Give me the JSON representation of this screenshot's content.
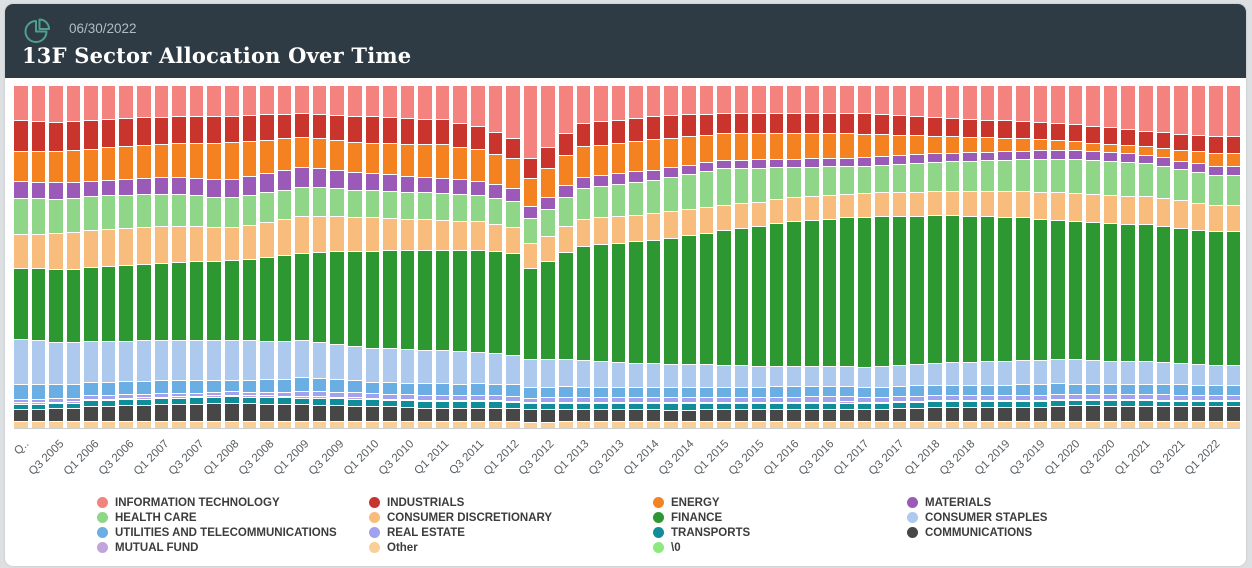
{
  "header": {
    "as_of_date": "06/30/2022",
    "title": "13F Sector Allocation Over Time",
    "icon_color": "#4fa08c",
    "background": "#2e3b44"
  },
  "chart_data": {
    "type": "bar",
    "subtype": "stacked-100-percent",
    "title": "13F Sector Allocation Over Time",
    "as_of_date": "06/30/2022",
    "xlabel": "",
    "ylabel": "",
    "ylim": [
      0,
      100
    ],
    "value_format": "percent",
    "grid": false,
    "legend_position": "bottom",
    "bar_count": 70,
    "x_tick_labels": [
      "Q..",
      "Q3 2005",
      "Q1 2006",
      "Q3 2006",
      "Q1 2007",
      "Q3 2007",
      "Q1 2008",
      "Q3 2008",
      "Q1 2009",
      "Q3 2009",
      "Q1 2010",
      "Q3 2010",
      "Q1 2011",
      "Q3 2011",
      "Q1 2012",
      "Q3 2012",
      "Q1 2013",
      "Q3 2013",
      "Q1 2014",
      "Q3 2014",
      "Q1 2015",
      "Q3 2015",
      "Q1 2016",
      "Q3 2016",
      "Q1 2017",
      "Q3 2017",
      "Q1 2018",
      "Q3 2018",
      "Q1 2019",
      "Q3 2019",
      "Q1 2020",
      "Q3 2020",
      "Q1 2021",
      "Q3 2021",
      "Q1 2022"
    ],
    "series": [
      {
        "name": "INFORMATION TECHNOLOGY",
        "color": "#f4827e",
        "values": [
          10,
          10.2,
          10.5,
          10.3,
          10,
          9.8,
          9.5,
          9.3,
          9.2,
          9,
          9,
          9,
          9,
          8.8,
          8.5,
          8.2,
          8,
          8.2,
          8.5,
          8.8,
          9,
          9.2,
          9.5,
          9.8,
          10,
          11,
          12,
          14,
          16,
          23,
          19,
          14,
          11,
          10.5,
          10,
          9.5,
          9,
          8.8,
          8.5,
          8.3,
          8,
          8,
          8,
          8,
          8,
          8,
          8,
          8,
          8,
          8.2,
          8.5,
          8.8,
          9,
          9.2,
          9.5,
          9.8,
          10,
          10.2,
          10.5,
          10.8,
          11,
          11.5,
          12,
          12.5,
          13,
          13.5,
          14,
          14.5,
          15,
          15
        ]
      },
      {
        "name": "INDUSTRIALS",
        "color": "#c9342c",
        "values": [
          9,
          8.9,
          8.8,
          8.6,
          8.5,
          8.4,
          8.3,
          8.1,
          8,
          8,
          8,
          8,
          8,
          7.8,
          7.5,
          7.2,
          7,
          7.2,
          7.5,
          7.8,
          8,
          7.9,
          7.8,
          7.6,
          7.5,
          7.2,
          6.8,
          6.4,
          6,
          6.2,
          6.5,
          6.8,
          7,
          7,
          7,
          7,
          7,
          6.8,
          6.5,
          6.2,
          6,
          6,
          6,
          6,
          6,
          6,
          6,
          6,
          6,
          5.9,
          5.8,
          5.6,
          5.5,
          5.4,
          5.3,
          5.1,
          5,
          5,
          5,
          5,
          5,
          4.9,
          4.8,
          4.6,
          4.5,
          4.6,
          4.8,
          4.9,
          5,
          5
        ]
      },
      {
        "name": "ENERGY",
        "color": "#f58220",
        "values": [
          9,
          9.1,
          9.2,
          9.4,
          9.5,
          9.6,
          9.8,
          9.9,
          10,
          10.2,
          10.5,
          10.8,
          11,
          10.5,
          10,
          9.5,
          9,
          9,
          9,
          9,
          9,
          9.2,
          9.5,
          9.8,
          10,
          9.8,
          9.5,
          9.2,
          9,
          9,
          9,
          9,
          9,
          9,
          9,
          9,
          9,
          8.8,
          8.5,
          8.2,
          8,
          7.9,
          7.8,
          7.6,
          7.5,
          7.4,
          7.2,
          7.1,
          7,
          6.5,
          6,
          5.5,
          5,
          4.8,
          4.5,
          4.2,
          4,
          3.6,
          3.2,
          2.8,
          2.5,
          2.5,
          2.5,
          2.5,
          2.5,
          2.8,
          3.2,
          3.6,
          4,
          4
        ]
      },
      {
        "name": "MATERIALS",
        "color": "#9c5ab8",
        "values": [
          5,
          4.9,
          4.8,
          4.6,
          4.5,
          4.6,
          4.8,
          4.9,
          5,
          5.1,
          5.2,
          5.4,
          5.5,
          5.6,
          5.8,
          5.9,
          6,
          5.8,
          5.5,
          5.2,
          5,
          4.9,
          4.8,
          4.6,
          4.5,
          4.4,
          4.2,
          4.1,
          4,
          3.9,
          3.8,
          3.6,
          3.5,
          3.4,
          3.2,
          3.1,
          3,
          2.9,
          2.8,
          2.6,
          2.5,
          2.5,
          2.5,
          2.5,
          2.5,
          2.5,
          2.5,
          2.5,
          2.5,
          2.5,
          2.5,
          2.5,
          2.5,
          2.5,
          2.5,
          2.5,
          2.5,
          2.5,
          2.5,
          2.5,
          2.5,
          2.5,
          2.5,
          2.5,
          2.5,
          2.5,
          2.5,
          2.5,
          2.5,
          2.5
        ]
      },
      {
        "name": "HEALTH CARE",
        "color": "#8fd688",
        "values": [
          10.5,
          10.4,
          10.2,
          10.1,
          10,
          9.9,
          9.8,
          9.6,
          9.5,
          9.4,
          9.2,
          9.1,
          9,
          8.9,
          8.8,
          8.6,
          8.5,
          8.4,
          8.2,
          8.1,
          8,
          8,
          8,
          8,
          8,
          8,
          8,
          8,
          8,
          8,
          8.2,
          8.6,
          9,
          9.2,
          9.5,
          9.8,
          10,
          10.2,
          10.5,
          10.8,
          11,
          10.5,
          10,
          9.5,
          9,
          8.8,
          8.5,
          8.2,
          8,
          8.1,
          8.2,
          8.4,
          8.5,
          8.6,
          8.8,
          8.9,
          9,
          9.2,
          9.5,
          9.8,
          10,
          10,
          10,
          10,
          9.5,
          9.5,
          9.2,
          9.2,
          9,
          9
        ]
      },
      {
        "name": "CONSUMER DISCRETIONARY",
        "color": "#f8bc7d",
        "values": [
          10,
          10.2,
          10.5,
          10.8,
          11,
          11,
          11,
          11,
          11,
          10.8,
          10.5,
          10.2,
          10,
          10.2,
          10.5,
          10.8,
          11,
          10.8,
          10.5,
          10.2,
          10,
          9.8,
          9.5,
          9.2,
          9,
          8.8,
          8.5,
          8.2,
          8,
          8,
          8,
          8,
          8,
          8,
          8,
          8,
          8,
          7.9,
          7.8,
          7.6,
          7.5,
          7.4,
          7.2,
          7.1,
          7,
          7,
          7,
          7,
          7,
          7,
          7,
          7,
          7,
          7.1,
          7.2,
          7.4,
          7.5,
          7.6,
          7.8,
          7.9,
          8,
          8,
          8,
          8,
          8,
          8,
          8,
          8,
          8,
          8
        ]
      },
      {
        "name": "FINANCE",
        "color": "#2d9732",
        "values": [
          21,
          21.2,
          21.5,
          21.8,
          22,
          22.2,
          22.5,
          22.8,
          23,
          23.2,
          23.5,
          23.8,
          24,
          24.5,
          25,
          25.5,
          26,
          26.8,
          27.5,
          28.2,
          29,
          29.2,
          29.5,
          29.8,
          30,
          30.2,
          30.5,
          30.8,
          31,
          29,
          30.5,
          32,
          34,
          34.8,
          35.5,
          36.2,
          37,
          37.8,
          38.5,
          39.2,
          40,
          40.8,
          41.5,
          42.2,
          43,
          43.2,
          43.5,
          43.8,
          44,
          43.8,
          43.5,
          43.2,
          43,
          42.8,
          42.5,
          42.2,
          42,
          41.5,
          41,
          40.5,
          40,
          40,
          40,
          40,
          40,
          40,
          40,
          40,
          40,
          40
        ]
      },
      {
        "name": "CONSUMER STAPLES",
        "color": "#aec9ee",
        "values": [
          13,
          12.8,
          12.5,
          12.2,
          12,
          12,
          12,
          12,
          12,
          12,
          12,
          12,
          12,
          11.8,
          11.5,
          11.2,
          11,
          10.8,
          10.5,
          10.2,
          10,
          10,
          10,
          10,
          10,
          9.8,
          9.5,
          9.2,
          9,
          8.8,
          8.5,
          8.2,
          8,
          7.8,
          7.5,
          7.2,
          7,
          6.9,
          6.8,
          6.6,
          6.5,
          6.4,
          6.2,
          6.1,
          6,
          6,
          6,
          6,
          6,
          6.1,
          6.2,
          6.4,
          6.5,
          6.6,
          6.8,
          6.9,
          7,
          7,
          7,
          7,
          7,
          6.9,
          6.8,
          6.6,
          6.5,
          6.4,
          6.2,
          6.1,
          6,
          6
        ]
      },
      {
        "name": "UTILITIES AND TELECOMMUNICATIONS",
        "color": "#6aaee3",
        "values": [
          4.5,
          4.4,
          4.2,
          4.1,
          4,
          4,
          4,
          4,
          4,
          3.9,
          3.8,
          3.6,
          3.5,
          3.6,
          3.8,
          3.9,
          4,
          3.9,
          3.8,
          3.6,
          3.5,
          3.5,
          3.5,
          3.5,
          3.5,
          3.5,
          3.5,
          3.5,
          3.5,
          3.4,
          3.2,
          3.1,
          3,
          3,
          3,
          3,
          3,
          3,
          3,
          3,
          3,
          3,
          3,
          3,
          3,
          3,
          3,
          3,
          3,
          3,
          3,
          3,
          3,
          3,
          3,
          3,
          3,
          3,
          3,
          3,
          3,
          3,
          3,
          3,
          3,
          3,
          3,
          3,
          3,
          3
        ]
      },
      {
        "name": "REAL ESTATE",
        "color": "#a0a2f0",
        "values": [
          1,
          1,
          1,
          1,
          1,
          1,
          1,
          1,
          1,
          1,
          1,
          1,
          1,
          1,
          1,
          1,
          1.5,
          1.5,
          1.5,
          1.5,
          1.5,
          1.5,
          1.5,
          1.5,
          1.5,
          1.5,
          1.5,
          1.5,
          1.5,
          1.5,
          1.5,
          1.5,
          1.5,
          1.5,
          1.5,
          1.5,
          1.5,
          1.5,
          1.5,
          1.5,
          1.5,
          1.5,
          1.5,
          1.5,
          1.5,
          1.5,
          1.5,
          1.5,
          1.5,
          1.5,
          1.5,
          1.5,
          1.5,
          1.5,
          1.5,
          1.5,
          1.5,
          1.5,
          1.5,
          1.5,
          1.5,
          1.5,
          1.5,
          1.5,
          1.5,
          1.5,
          1.5,
          1.5,
          1.5,
          1.5
        ]
      },
      {
        "name": "MUTUAL FUND",
        "color": "#c2a3da",
        "values": [
          0.5,
          0.5,
          0.5,
          0.5,
          0.5,
          0.5,
          0.5,
          0.5,
          0.5,
          0.5,
          0.5,
          0.5,
          0.5,
          0.5,
          0.5,
          0.5,
          0.5,
          0.5,
          0.5,
          0.5,
          0.3,
          0.3,
          0.3,
          0.3,
          0.3,
          0.3,
          0.3,
          0.3,
          0.3,
          0.3,
          0.3,
          0.3,
          0.3,
          0.3,
          0.3,
          0.3,
          0.3,
          0.3,
          0.3,
          0.3,
          0.3,
          0.3,
          0.3,
          0.3,
          0.3,
          0.3,
          0.3,
          0.3,
          0.3,
          0.3,
          0.3,
          0.3,
          0.3,
          0.3,
          0.3,
          0.3,
          0.3,
          0.3,
          0.3,
          0.3,
          0.3,
          0.3,
          0.3,
          0.3,
          0.3,
          0.3,
          0.3,
          0.3,
          0.3,
          0.3
        ]
      },
      {
        "name": "TRANSPORTS",
        "color": "#0f8e99",
        "values": [
          1.5,
          1.5,
          1.5,
          1.5,
          1.6,
          1.6,
          1.7,
          1.7,
          1.8,
          1.8,
          1.9,
          1.9,
          2,
          2,
          2,
          2,
          2,
          2,
          2,
          2,
          2,
          2,
          2,
          2,
          2,
          2,
          2,
          2,
          2,
          2,
          2,
          2,
          2,
          2,
          2,
          2,
          2,
          2,
          2,
          2,
          2,
          2,
          2,
          2,
          2,
          2,
          2,
          2,
          1.7,
          1.7,
          1.7,
          1.7,
          1.7,
          1.7,
          1.7,
          1.7,
          1.7,
          1.7,
          1.7,
          1.7,
          1.5,
          1.5,
          1.5,
          1.5,
          1.5,
          1.5,
          1.5,
          1.5,
          1.5,
          1.5
        ]
      },
      {
        "name": "COMMUNICATIONS",
        "color": "#474747",
        "values": [
          3.5,
          3.6,
          3.8,
          3.9,
          4.5,
          4.6,
          4.8,
          4.9,
          5,
          5.1,
          5.2,
          5.4,
          5.5,
          5.4,
          5.2,
          5.1,
          5,
          4.9,
          4.8,
          4.6,
          4.5,
          4.4,
          4.2,
          4.1,
          4,
          4,
          4,
          4,
          4,
          3.9,
          3.8,
          3.6,
          3.5,
          3.5,
          3.5,
          3.5,
          3.5,
          3.5,
          3.5,
          3.5,
          3.5,
          3.5,
          3.5,
          3.5,
          3.5,
          3.5,
          3.5,
          3.5,
          3.5,
          3.6,
          3.8,
          3.9,
          4,
          4,
          4,
          4,
          4,
          4.1,
          4.2,
          4.4,
          4.5,
          4.5,
          4.5,
          4.5,
          4.5,
          4.5,
          4.5,
          4.5,
          4.5,
          4.5
        ]
      },
      {
        "name": "Other",
        "color": "#f9cf97",
        "values": [
          2,
          2,
          2,
          2,
          2,
          2,
          2,
          2,
          2,
          2,
          2,
          2,
          2,
          2,
          2,
          2,
          2,
          2,
          2,
          2,
          2,
          2,
          2,
          2,
          2,
          2,
          2,
          2,
          2,
          2,
          2,
          2,
          2,
          2,
          2,
          2,
          2,
          2,
          2,
          2,
          2,
          2,
          2,
          2,
          2,
          2,
          2,
          2,
          2,
          2,
          2,
          2,
          2,
          2,
          2,
          2,
          2,
          2,
          2,
          2,
          2,
          2,
          2,
          2,
          2,
          2,
          2,
          2,
          2,
          2
        ]
      },
      {
        "name": "\\0",
        "color": "#8de97e",
        "values": [
          0,
          0,
          0,
          0,
          0,
          0,
          0,
          0,
          0,
          0,
          0,
          0,
          0,
          0,
          0,
          0,
          0,
          0,
          0,
          0,
          0,
          0,
          0,
          0,
          0,
          0,
          0,
          0,
          0,
          0,
          0,
          0,
          0,
          0,
          0,
          0,
          0,
          0,
          0,
          0,
          0,
          0,
          0,
          0,
          0,
          0,
          0,
          0,
          0,
          0,
          0,
          0,
          0,
          0,
          0,
          0,
          0,
          0,
          0,
          0,
          0,
          0,
          0,
          0,
          0,
          0,
          0,
          0,
          0,
          0
        ]
      }
    ],
    "legend_columns": [
      [
        "INFORMATION TECHNOLOGY",
        "HEALTH CARE",
        "UTILITIES AND TELECOMMUNICATIONS",
        "MUTUAL FUND"
      ],
      [
        "INDUSTRIALS",
        "CONSUMER DISCRETIONARY",
        "REAL ESTATE",
        "Other"
      ],
      [
        "ENERGY",
        "FINANCE",
        "TRANSPORTS",
        "\\0"
      ],
      [
        "MATERIALS",
        "CONSUMER STAPLES",
        "COMMUNICATIONS"
      ]
    ]
  }
}
